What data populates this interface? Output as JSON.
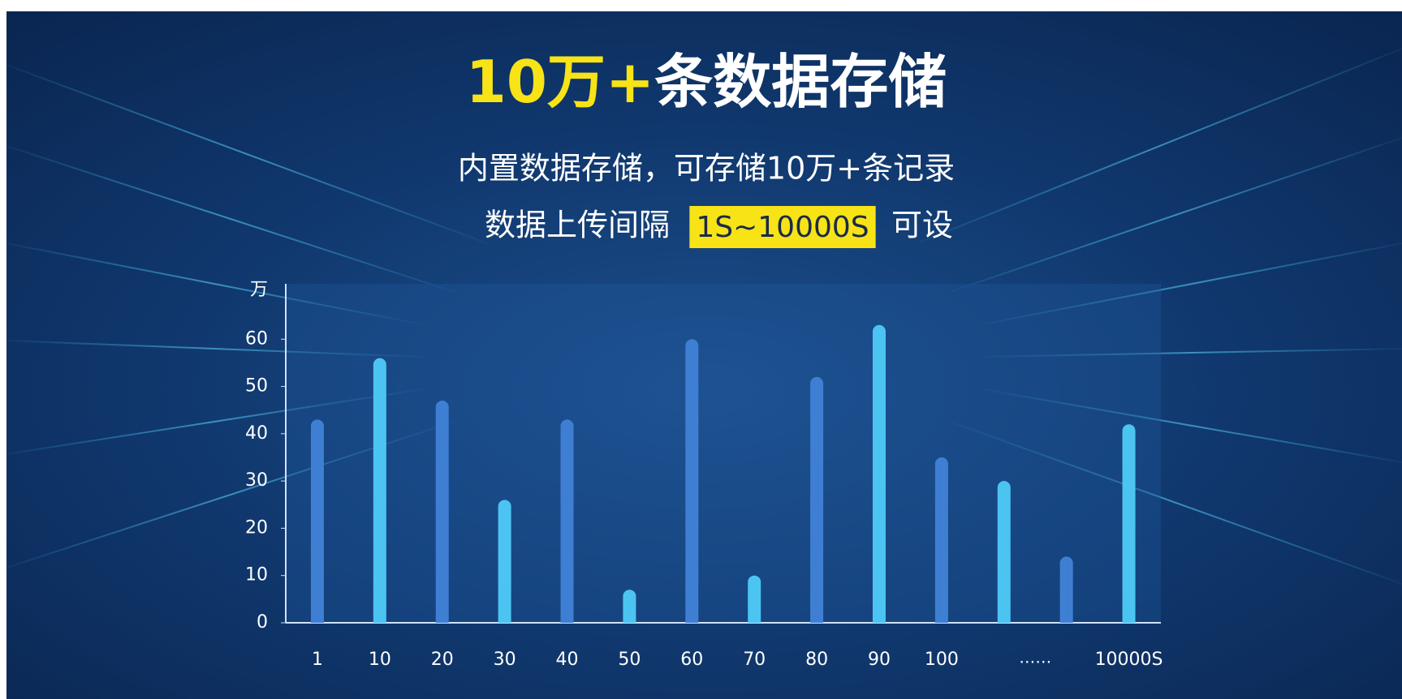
{
  "chart_data": {
    "type": "bar",
    "title_parts": [
      "10万+",
      "条数据存储"
    ],
    "subtitle": "内置数据存储，可存储10万+条记录",
    "interval_text": "数据上传间隔",
    "interval_highlight": "1S~10000S",
    "interval_suffix": "可设",
    "y_unit": "万",
    "categories": [
      "1",
      "10",
      "20",
      "30",
      "40",
      "50",
      "60",
      "70",
      "80",
      "90",
      "100",
      null,
      null,
      "10000S"
    ],
    "gap_label": "……",
    "values": [
      43,
      56,
      47,
      26,
      43,
      7,
      60,
      10,
      52,
      63,
      35,
      30,
      14,
      42
    ],
    "colors": [
      "#3f7fd3",
      "#4cc4f2",
      "#3f7fd3",
      "#4cc4f2",
      "#3f7fd3",
      "#4cc4f2",
      "#3f7fd3",
      "#4cc4f2",
      "#3f7fd3",
      "#4cc4f2",
      "#3f7fd3",
      "#4cc4f2",
      "#3f7fd3",
      "#4cc4f2"
    ],
    "ylim": [
      0,
      70
    ],
    "yticks": [
      0,
      10,
      20,
      30,
      40,
      50,
      60
    ]
  }
}
